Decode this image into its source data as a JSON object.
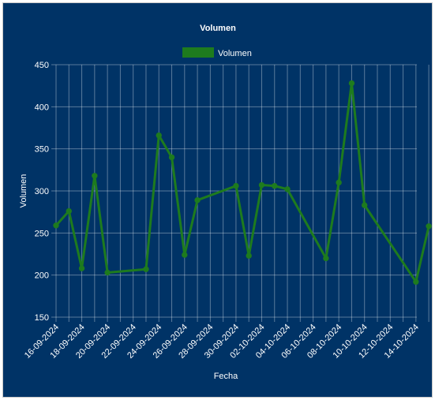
{
  "chart_data": {
    "type": "line",
    "title": "Volumen",
    "xlabel": "Fecha",
    "ylabel": "Volumen",
    "ylim": [
      150,
      450
    ],
    "yticks": [
      150,
      200,
      250,
      300,
      350,
      400,
      450
    ],
    "grid": true,
    "legend_position": "top-center",
    "series_color": "#1e7b1e",
    "x_tick_labels": [
      "16-09-2024",
      "18-09-2024",
      "20-09-2024",
      "22-09-2024",
      "24-09-2024",
      "26-09-2024",
      "28-09-2024",
      "30-09-2024",
      "02-10-2024",
      "04-10-2024",
      "06-10-2024",
      "08-10-2024",
      "10-10-2024",
      "12-10-2024",
      "14-10-2024"
    ],
    "series": [
      {
        "name": "Volumen",
        "points": [
          {
            "x": "16-09-2024",
            "y": 259
          },
          {
            "x": "17-09-2024",
            "y": 276
          },
          {
            "x": "18-09-2024",
            "y": 208
          },
          {
            "x": "19-09-2024",
            "y": 318
          },
          {
            "x": "20-09-2024",
            "y": 203
          },
          {
            "x": "23-09-2024",
            "y": 207
          },
          {
            "x": "24-09-2024",
            "y": 366
          },
          {
            "x": "25-09-2024",
            "y": 340
          },
          {
            "x": "26-09-2024",
            "y": 224
          },
          {
            "x": "27-09-2024",
            "y": 289
          },
          {
            "x": "30-09-2024",
            "y": 306
          },
          {
            "x": "01-10-2024",
            "y": 223
          },
          {
            "x": "02-10-2024",
            "y": 307
          },
          {
            "x": "03-10-2024",
            "y": 306
          },
          {
            "x": "04-10-2024",
            "y": 302
          },
          {
            "x": "07-10-2024",
            "y": 220
          },
          {
            "x": "08-10-2024",
            "y": 310
          },
          {
            "x": "09-10-2024",
            "y": 428
          },
          {
            "x": "10-10-2024",
            "y": 283
          },
          {
            "x": "14-10-2024",
            "y": 192
          },
          {
            "x": "15-10-2024",
            "y": 258
          }
        ]
      }
    ]
  }
}
